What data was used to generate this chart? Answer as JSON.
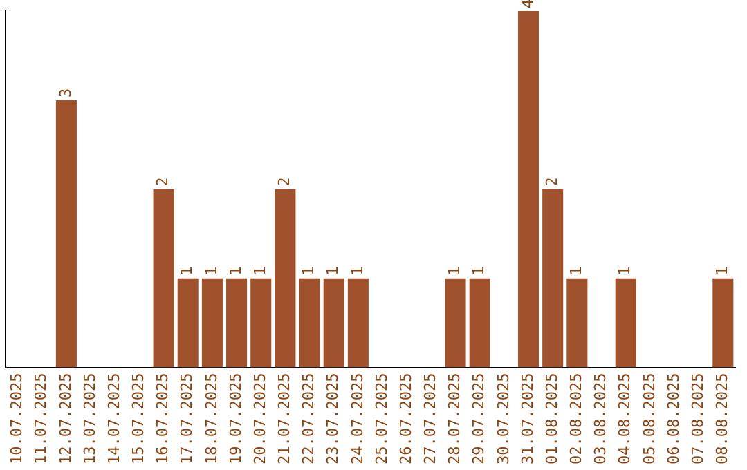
{
  "chart_data": {
    "type": "bar",
    "categories": [
      "10.07.2025",
      "11.07.2025",
      "12.07.2025",
      "13.07.2025",
      "14.07.2025",
      "15.07.2025",
      "16.07.2025",
      "17.07.2025",
      "18.07.2025",
      "19.07.2025",
      "20.07.2025",
      "21.07.2025",
      "22.07.2025",
      "23.07.2025",
      "24.07.2025",
      "25.07.2025",
      "26.07.2025",
      "27.07.2025",
      "28.07.2025",
      "29.07.2025",
      "30.07.2025",
      "31.07.2025",
      "01.08.2025",
      "02.08.2025",
      "03.08.2025",
      "04.08.2025",
      "05.08.2025",
      "06.08.2025",
      "07.08.2025",
      "08.08.2025"
    ],
    "values": [
      0,
      0,
      3,
      0,
      0,
      0,
      2,
      1,
      1,
      1,
      1,
      2,
      1,
      1,
      1,
      0,
      0,
      0,
      1,
      1,
      0,
      4,
      2,
      1,
      0,
      1,
      0,
      0,
      0,
      1
    ],
    "value_labels": [
      null,
      null,
      "3",
      null,
      null,
      null,
      "2",
      "1",
      "1",
      "1",
      "1",
      "2",
      "1",
      "1",
      "1",
      null,
      null,
      null,
      "1",
      "1",
      null,
      "4",
      "2",
      "1",
      null,
      "1",
      null,
      null,
      null,
      "1"
    ],
    "color": "#a0522d",
    "ylim": [
      0,
      4
    ],
    "tick_labels": "x",
    "grid": false,
    "legend": false
  }
}
